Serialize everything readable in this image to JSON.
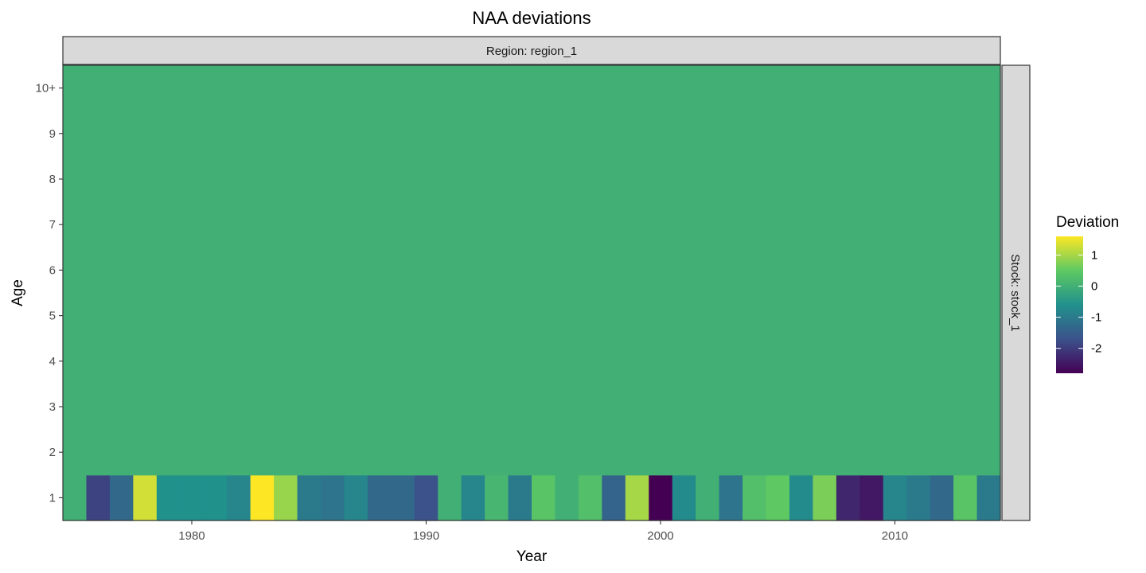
{
  "chart_data": {
    "type": "heatmap",
    "title": "NAA deviations",
    "xlabel": "Year",
    "ylabel": "Age",
    "facet_col_label": "Region: region_1",
    "facet_row_label": "Stock: stock_1",
    "x_ticks": [
      1980,
      1990,
      2000,
      2010
    ],
    "x_tick_labels": [
      "1980",
      "1990",
      "2000",
      "2010"
    ],
    "xlim": [
      1974.5,
      2014.5
    ],
    "ages": [
      "1",
      "2",
      "3",
      "4",
      "5",
      "6",
      "7",
      "8",
      "9",
      "10+"
    ],
    "years": [
      1975,
      1976,
      1977,
      1978,
      1979,
      1980,
      1981,
      1982,
      1983,
      1984,
      1985,
      1986,
      1987,
      1988,
      1989,
      1990,
      1991,
      1992,
      1993,
      1994,
      1995,
      1996,
      1997,
      1998,
      1999,
      2000,
      2001,
      2002,
      2003,
      2004,
      2005,
      2006,
      2007,
      2008,
      2009,
      2010,
      2011,
      2012,
      2013,
      2014
    ],
    "age1_deviations": [
      0.0,
      -1.9,
      -1.3,
      1.3,
      -0.6,
      -0.6,
      -0.6,
      -0.8,
      1.6,
      0.9,
      -1.0,
      -1.1,
      -0.8,
      -1.3,
      -1.3,
      -1.7,
      0.0,
      -0.8,
      0.1,
      -1.0,
      0.4,
      0.0,
      0.3,
      -1.4,
      1.0,
      -2.8,
      -0.7,
      0.0,
      -1.1,
      0.3,
      0.5,
      -0.7,
      0.7,
      -2.3,
      -2.5,
      -0.8,
      -1.0,
      -1.3,
      0.4,
      -1.0
    ],
    "other_ages_deviation": 0.0,
    "legend": {
      "title": "Deviation",
      "ticks": [
        1,
        0,
        -1,
        -2
      ],
      "tick_labels": [
        "1",
        "0",
        "-1",
        "-2"
      ],
      "range": [
        -2.8,
        1.6
      ],
      "position": "right"
    },
    "colormap": "viridis",
    "grid": false
  }
}
